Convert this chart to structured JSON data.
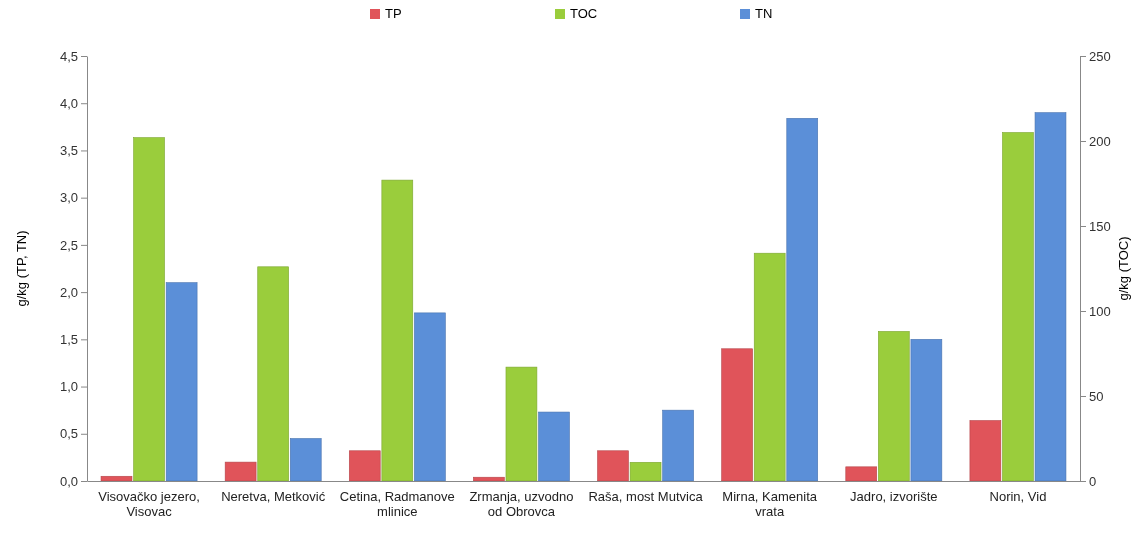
{
  "chart_data": {
    "type": "bar",
    "ylabel": "g/kg (TP, TN)",
    "y2label": "g/kg (TOC)",
    "categories": [
      "Visovačko jezero, Visovac",
      "Neretva, Metković",
      "Cetina, Radmanove mlinice",
      "Zrmanja, uzvodno od Obrovca",
      "Raša, most Mutvica",
      "Mirna, Kamenita vrata",
      "Jadro, izvorište",
      "Norin, Vid"
    ],
    "series": [
      {
        "name": "TP",
        "color": "#e0545a",
        "values": [
          0.05,
          0.2,
          0.32,
          0.04,
          0.32,
          1.4,
          0.15,
          0.64
        ]
      },
      {
        "name": "TOC",
        "color": "#9acd3c",
        "axis": "y2",
        "values": [
          202,
          126,
          177,
          67,
          11,
          134,
          88,
          205
        ]
      },
      {
        "name": "TN",
        "color": "#5b8fd8",
        "values": [
          2.1,
          0.45,
          1.78,
          0.73,
          0.75,
          3.84,
          1.5,
          3.9
        ]
      }
    ],
    "ylim": [
      0,
      4.5
    ],
    "yticks": [
      {
        "value": 0,
        "label": "0,0"
      },
      {
        "value": 0.5,
        "label": "0,5"
      },
      {
        "value": 1,
        "label": "1,0"
      },
      {
        "value": 1.5,
        "label": "1,5"
      },
      {
        "value": 2,
        "label": "2,0"
      },
      {
        "value": 2.5,
        "label": "2,5"
      },
      {
        "value": 3,
        "label": "3,0"
      },
      {
        "value": 3.5,
        "label": "3,5"
      },
      {
        "value": 4,
        "label": "4,0"
      },
      {
        "value": 4.5,
        "label": "4,5"
      }
    ],
    "y2lim": [
      0,
      250
    ],
    "y2ticks": [
      0,
      50,
      100,
      150,
      200,
      250
    ],
    "legend": "top",
    "grid": false
  }
}
